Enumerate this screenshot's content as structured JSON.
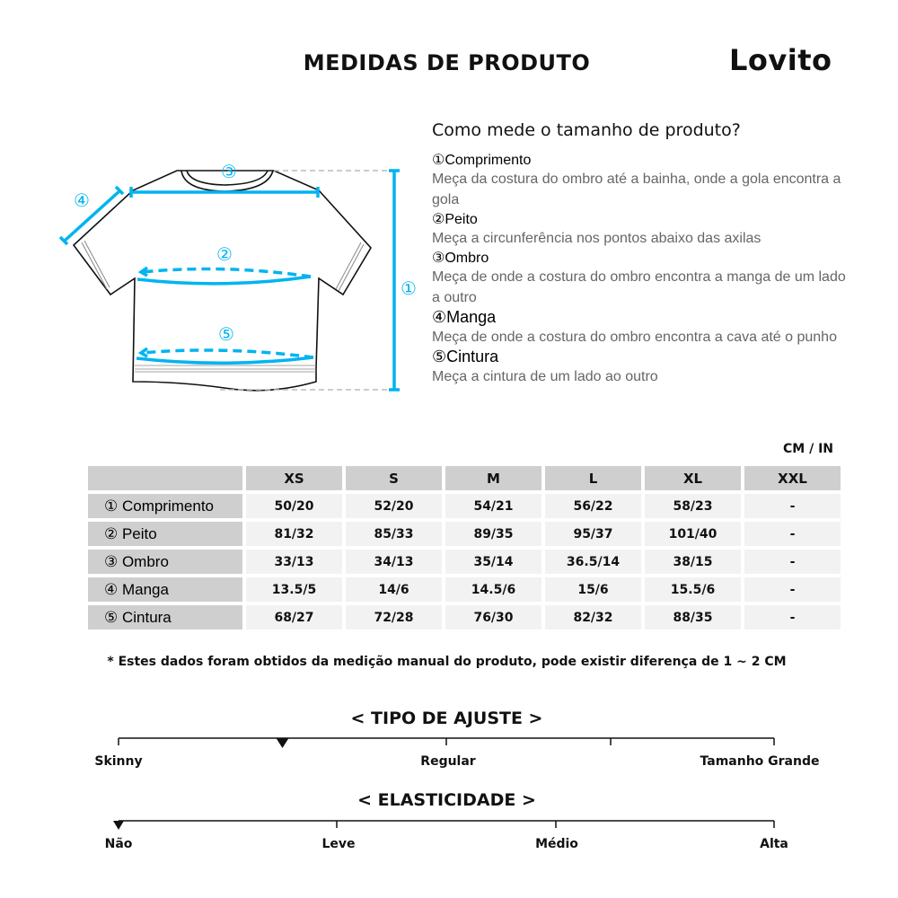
{
  "header": {
    "title": "MEDIDAS DE PRODUTO",
    "logo": "Lovito"
  },
  "guide": {
    "question": "Como mede o tamanho de produto?",
    "items": [
      {
        "title": "①Comprimento",
        "desc": "Meça da costura do ombro até a bainha, onde a gola encontra a gola"
      },
      {
        "title": "②Peito",
        "desc": "Meça a circunferência nos pontos abaixo das axilas"
      },
      {
        "title": "③Ombro",
        "desc": "Meça de onde a costura do ombro encontra a manga de um lado a outro"
      },
      {
        "title": "④Manga",
        "desc": "Meça de onde a costura do ombro encontra a cava até o punho"
      },
      {
        "title": "⑤Cintura",
        "desc": "Meça a cintura de um lado ao outro"
      }
    ]
  },
  "diagram": {
    "labels": [
      "①",
      "②",
      "③",
      "④",
      "⑤"
    ],
    "accent": "#00b4f0"
  },
  "table": {
    "unit": "CM / IN",
    "headers": [
      "",
      "XS",
      "S",
      "M",
      "L",
      "XL",
      "XXL"
    ],
    "rows": [
      {
        "label": "① Comprimento",
        "values": [
          "50/20",
          "52/20",
          "54/21",
          "56/22",
          "58/23",
          "-"
        ]
      },
      {
        "label": "② Peito",
        "values": [
          "81/32",
          "85/33",
          "89/35",
          "95/37",
          "101/40",
          "-"
        ]
      },
      {
        "label": "③ Ombro",
        "values": [
          "33/13",
          "34/13",
          "35/14",
          "36.5/14",
          "38/15",
          "-"
        ]
      },
      {
        "label": "④ Manga",
        "values": [
          "13.5/5",
          "14/6",
          "14.5/6",
          "15/6",
          "15.5/6",
          "-"
        ]
      },
      {
        "label": "⑤ Cintura",
        "values": [
          "68/27",
          "72/28",
          "76/30",
          "82/32",
          "88/35",
          "-"
        ]
      }
    ]
  },
  "note": "* Estes dados foram obtidos da medição manual do produto, pode existir diferença de 1 ~ 2 CM",
  "fit": {
    "title": "< TIPO DE AJUSTE >",
    "labels": [
      "Skinny",
      "Regular",
      "Tamanho Grande"
    ],
    "selected_position": 0.25
  },
  "elasticity": {
    "title": "< ELASTICIDADE >",
    "labels": [
      "Não",
      "Leve",
      "Médio",
      "Alta"
    ],
    "selected": "Não"
  }
}
